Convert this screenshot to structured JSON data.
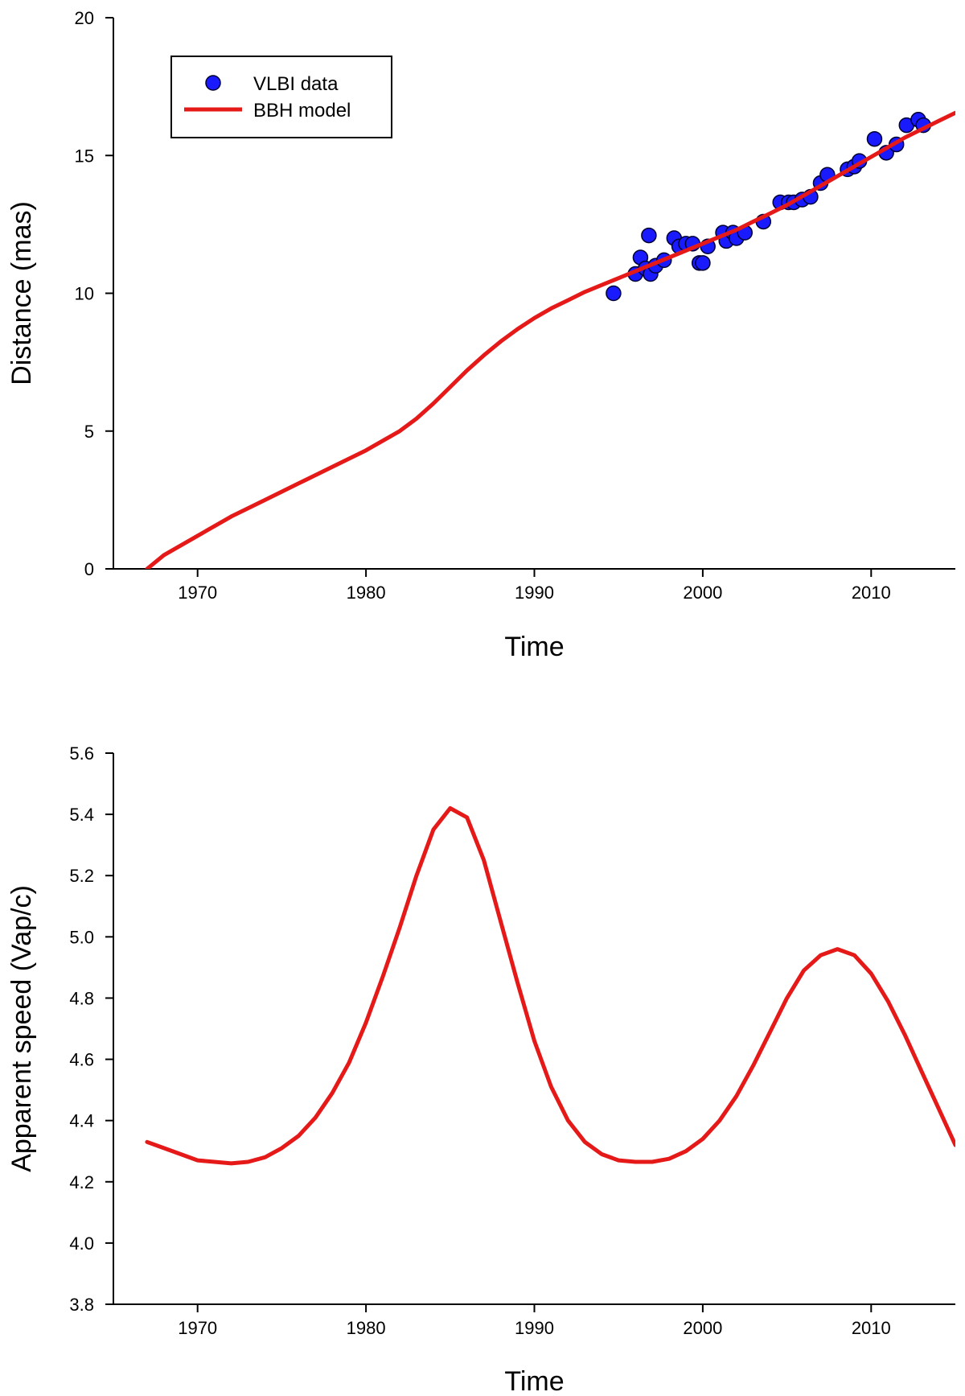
{
  "chart_data": [
    {
      "type": "line",
      "xlabel": "Time",
      "ylabel": "Distance (mas)",
      "xlim": [
        1965,
        2015
      ],
      "ylim": [
        0,
        20
      ],
      "xticks": [
        "1970",
        "1980",
        "1990",
        "2000",
        "2010"
      ],
      "yticks": [
        "0",
        "5",
        "10",
        "15",
        "20"
      ],
      "grid": false,
      "legend": {
        "position": "top-left",
        "entries": [
          "VLBI data",
          "BBH model"
        ]
      },
      "series": [
        {
          "name": "VLBI data",
          "kind": "scatter",
          "color": "#1a1aff",
          "points": [
            [
              1994.7,
              10.0
            ],
            [
              1996.0,
              10.7
            ],
            [
              1996.3,
              11.3
            ],
            [
              1996.6,
              10.9
            ],
            [
              1996.8,
              12.1
            ],
            [
              1996.9,
              10.7
            ],
            [
              1997.2,
              11.0
            ],
            [
              1997.7,
              11.2
            ],
            [
              1998.3,
              12.0
            ],
            [
              1998.6,
              11.7
            ],
            [
              1999.0,
              11.8
            ],
            [
              1999.4,
              11.8
            ],
            [
              1999.8,
              11.1
            ],
            [
              2000.0,
              11.1
            ],
            [
              2000.3,
              11.7
            ],
            [
              2001.2,
              12.2
            ],
            [
              2001.4,
              11.9
            ],
            [
              2001.8,
              12.2
            ],
            [
              2002.0,
              12.0
            ],
            [
              2002.5,
              12.2
            ],
            [
              2003.6,
              12.6
            ],
            [
              2004.6,
              13.3
            ],
            [
              2005.1,
              13.3
            ],
            [
              2005.4,
              13.3
            ],
            [
              2005.9,
              13.4
            ],
            [
              2006.4,
              13.5
            ],
            [
              2007.0,
              14.0
            ],
            [
              2007.4,
              14.3
            ],
            [
              2008.6,
              14.5
            ],
            [
              2009.0,
              14.6
            ],
            [
              2009.3,
              14.8
            ],
            [
              2010.2,
              15.6
            ],
            [
              2010.9,
              15.1
            ],
            [
              2011.5,
              15.4
            ],
            [
              2012.1,
              16.1
            ],
            [
              2012.8,
              16.3
            ],
            [
              2013.1,
              16.1
            ]
          ]
        },
        {
          "name": "BBH model",
          "kind": "line",
          "color": "#e61919",
          "x": [
            1967.0,
            1968.0,
            1970.0,
            1972.0,
            1974.0,
            1976.0,
            1978.0,
            1980.0,
            1982.0,
            1983.0,
            1984.0,
            1985.0,
            1986.0,
            1987.0,
            1988.0,
            1989.0,
            1990.0,
            1991.0,
            1992.0,
            1993.0,
            1994.0,
            1995.0,
            1996.0,
            1997.0,
            1998.0,
            1999.0,
            2000.0,
            2001.0,
            2002.0,
            2003.0,
            2004.0,
            2005.0,
            2006.0,
            2007.0,
            2008.0,
            2009.0,
            2010.0,
            2011.0,
            2012.0,
            2013.0,
            2014.0,
            2015.0
          ],
          "y": [
            0.0,
            0.5,
            1.2,
            1.9,
            2.5,
            3.1,
            3.7,
            4.3,
            5.0,
            5.45,
            6.0,
            6.6,
            7.2,
            7.75,
            8.25,
            8.7,
            9.1,
            9.45,
            9.75,
            10.05,
            10.3,
            10.55,
            10.8,
            11.05,
            11.3,
            11.55,
            11.8,
            12.05,
            12.3,
            12.6,
            12.9,
            13.2,
            13.55,
            13.9,
            14.25,
            14.6,
            14.95,
            15.3,
            15.65,
            15.95,
            16.25,
            16.55
          ]
        }
      ]
    },
    {
      "type": "line",
      "xlabel": "Time",
      "ylabel": "Apparent speed (Vap/c)",
      "xlim": [
        1965,
        2015
      ],
      "ylim": [
        3.8,
        5.6
      ],
      "xticks": [
        "1970",
        "1980",
        "1990",
        "2000",
        "2010"
      ],
      "yticks": [
        "3.8",
        "4.0",
        "4.2",
        "4.4",
        "4.6",
        "4.8",
        "5.0",
        "5.2",
        "5.4",
        "5.6"
      ],
      "grid": false,
      "series": [
        {
          "kind": "line",
          "color": "#e61919",
          "x": [
            1967.0,
            1968.0,
            1969.0,
            1970.0,
            1971.0,
            1972.0,
            1973.0,
            1974.0,
            1975.0,
            1976.0,
            1977.0,
            1978.0,
            1979.0,
            1980.0,
            1981.0,
            1982.0,
            1983.0,
            1984.0,
            1985.0,
            1986.0,
            1987.0,
            1988.0,
            1989.0,
            1990.0,
            1991.0,
            1992.0,
            1993.0,
            1994.0,
            1995.0,
            1996.0,
            1997.0,
            1998.0,
            1999.0,
            2000.0,
            2001.0,
            2002.0,
            2003.0,
            2004.0,
            2005.0,
            2006.0,
            2007.0,
            2008.0,
            2009.0,
            2010.0,
            2011.0,
            2012.0,
            2013.0,
            2014.0,
            2015.0
          ],
          "y": [
            4.33,
            4.31,
            4.29,
            4.27,
            4.265,
            4.26,
            4.265,
            4.28,
            4.31,
            4.35,
            4.41,
            4.49,
            4.59,
            4.72,
            4.87,
            5.03,
            5.2,
            5.35,
            5.42,
            5.39,
            5.25,
            5.05,
            4.85,
            4.66,
            4.51,
            4.4,
            4.33,
            4.29,
            4.27,
            4.265,
            4.265,
            4.275,
            4.3,
            4.34,
            4.4,
            4.48,
            4.58,
            4.69,
            4.8,
            4.89,
            4.94,
            4.96,
            4.94,
            4.88,
            4.79,
            4.68,
            4.56,
            4.44,
            4.32
          ]
        }
      ]
    }
  ]
}
